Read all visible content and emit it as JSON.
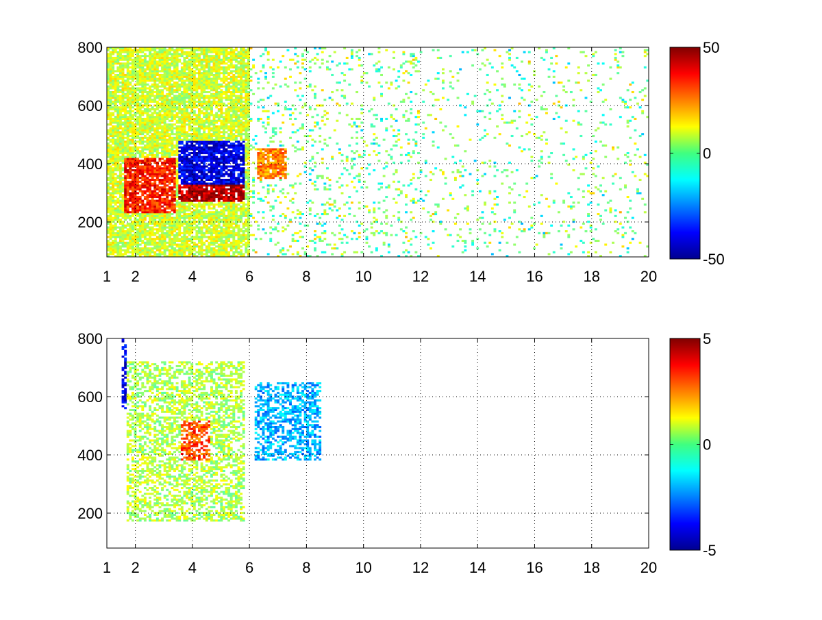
{
  "chart_data": [
    {
      "type": "heatmap",
      "title": "",
      "xlabel": "",
      "ylabel": "",
      "xlim": [
        1,
        20
      ],
      "ylim": [
        80,
        800
      ],
      "x_ticks": [
        1,
        2,
        4,
        6,
        8,
        10,
        12,
        14,
        16,
        18,
        20
      ],
      "x_tick_labels": [
        "1",
        "2",
        "4",
        "6",
        "8",
        "10",
        "12",
        "14",
        "16",
        "18",
        "20"
      ],
      "y_ticks": [
        200,
        400,
        600,
        800
      ],
      "y_tick_labels": [
        "200",
        "400",
        "600",
        "800"
      ],
      "grid": true,
      "colormap": "jet",
      "clim": [
        -50,
        50
      ],
      "colorbar_ticks": [
        -50,
        0,
        50
      ],
      "colorbar_tick_labels": [
        "-50",
        "0",
        "50"
      ],
      "features": [
        {
          "region": "ridge",
          "x": [
            1.6,
            3.4
          ],
          "y": [
            230,
            420
          ],
          "value": 35
        },
        {
          "region": "ridge",
          "x": [
            3.5,
            5.8
          ],
          "y": [
            270,
            330
          ],
          "value": 45
        },
        {
          "region": "trough",
          "x": [
            3.5,
            5.8
          ],
          "y": [
            330,
            480
          ],
          "value": -40
        },
        {
          "region": "patch",
          "x": [
            6.3,
            7.3
          ],
          "y": [
            350,
            450
          ],
          "value": 25
        },
        {
          "region": "background",
          "x": [
            1,
            6
          ],
          "y": [
            80,
            800
          ],
          "value": 8
        }
      ]
    },
    {
      "type": "heatmap",
      "title": "",
      "xlabel": "",
      "ylabel": "",
      "xlim": [
        1,
        20
      ],
      "ylim": [
        80,
        800
      ],
      "x_ticks": [
        1,
        2,
        4,
        6,
        8,
        10,
        12,
        14,
        16,
        18,
        20
      ],
      "x_tick_labels": [
        "1",
        "2",
        "4",
        "6",
        "8",
        "10",
        "12",
        "14",
        "16",
        "18",
        "20"
      ],
      "y_ticks": [
        200,
        400,
        600,
        800
      ],
      "y_tick_labels": [
        "200",
        "400",
        "600",
        "800"
      ],
      "grid": true,
      "colormap": "jet",
      "clim": [
        -5,
        5
      ],
      "colorbar_ticks": [
        -5,
        0,
        5
      ],
      "colorbar_tick_labels": [
        "-5",
        "0",
        "5"
      ],
      "features": [
        {
          "region": "cluster",
          "x": [
            1.7,
            5.8
          ],
          "y": [
            170,
            720
          ],
          "value": 0.5
        },
        {
          "region": "peak",
          "x": [
            3.6,
            4.6
          ],
          "y": [
            380,
            520
          ],
          "value": 3
        },
        {
          "region": "cluster",
          "x": [
            6.2,
            8.5
          ],
          "y": [
            380,
            650
          ],
          "value": -2
        },
        {
          "region": "spike",
          "x": [
            1.5,
            1.7
          ],
          "y": [
            560,
            800
          ],
          "value": -4
        }
      ]
    }
  ]
}
